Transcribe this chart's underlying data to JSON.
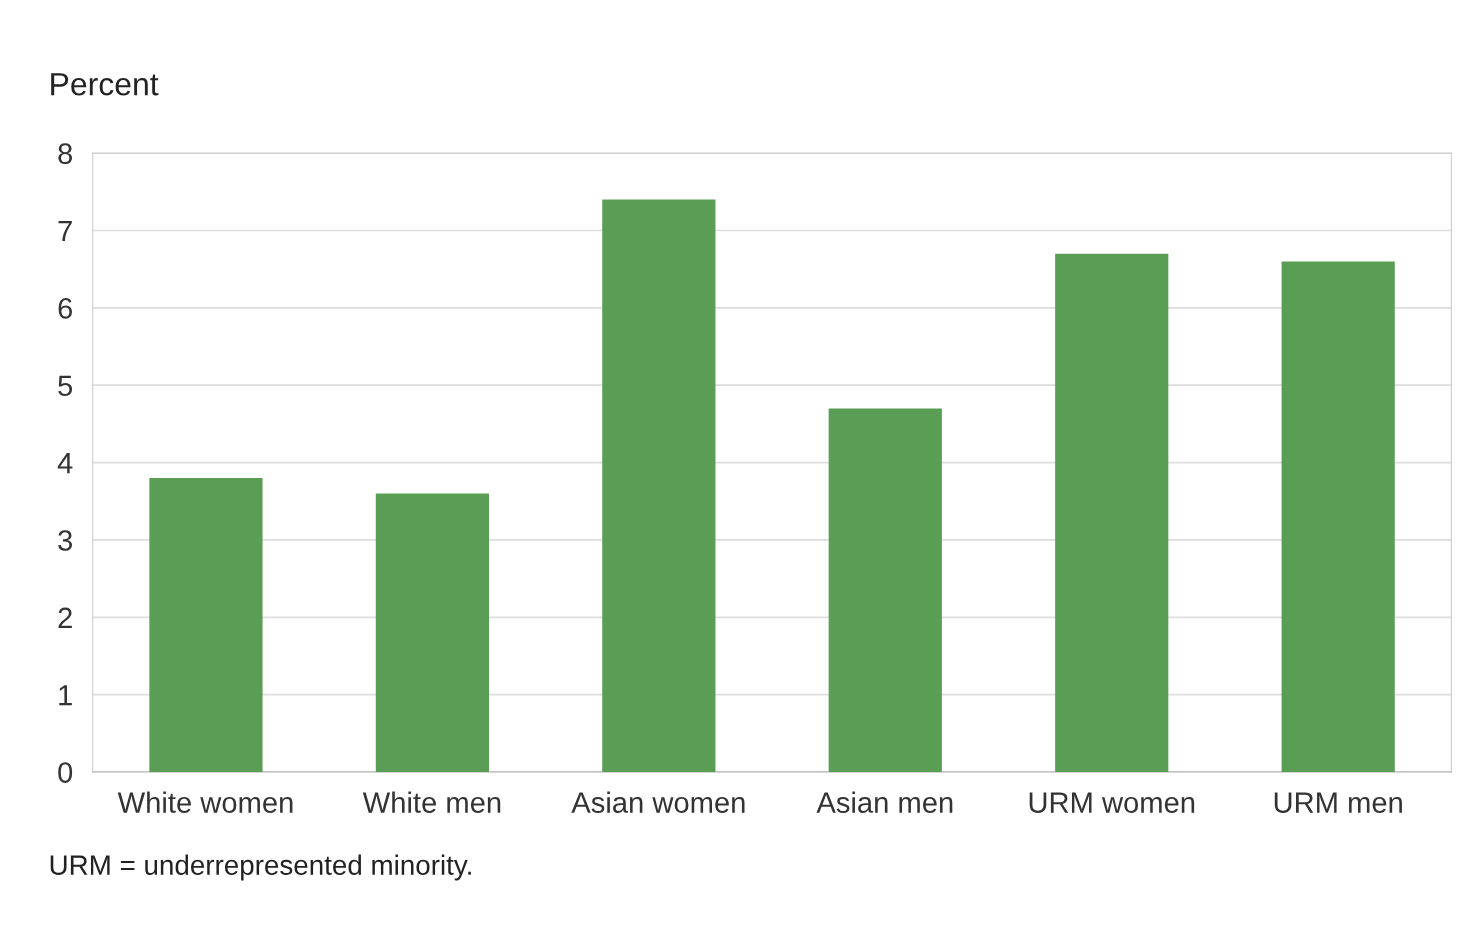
{
  "chart_data": {
    "type": "bar",
    "ylabel": "Percent",
    "categories": [
      "White women",
      "White men",
      "Asian women",
      "Asian men",
      "URM women",
      "URM men"
    ],
    "values": [
      3.8,
      3.6,
      7.4,
      4.7,
      6.7,
      6.6
    ],
    "color": "#5a9e55",
    "ylim": [
      0,
      8
    ],
    "yticks": [
      0,
      1,
      2,
      3,
      4,
      5,
      6,
      7,
      8
    ],
    "grid": "y",
    "legend": false,
    "annotations": [
      "URM = underrepresented minority."
    ]
  }
}
